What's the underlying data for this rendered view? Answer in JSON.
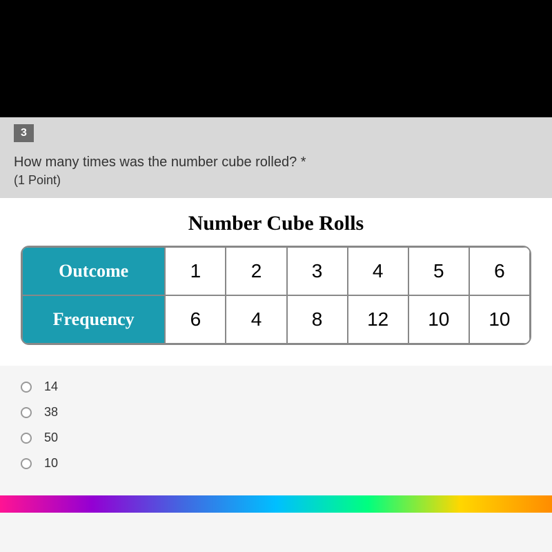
{
  "question": {
    "number": "3",
    "text": "How many times was the number cube rolled? *",
    "points": "(1 Point)"
  },
  "table": {
    "title": "Number Cube Rolls",
    "row1_header": "Outcome",
    "row2_header": "Frequency",
    "outcomes": [
      "1",
      "2",
      "3",
      "4",
      "5",
      "6"
    ],
    "frequencies": [
      "6",
      "4",
      "8",
      "12",
      "10",
      "10"
    ],
    "header_bg_color": "#1b9cb0",
    "header_text_color": "#ffffff",
    "cell_bg_color": "#ffffff",
    "border_color": "#888888",
    "title_fontsize": 30,
    "header_fontsize": 26,
    "cell_fontsize": 28
  },
  "options": [
    {
      "label": "14"
    },
    {
      "label": "38"
    },
    {
      "label": "50"
    },
    {
      "label": "10"
    }
  ]
}
